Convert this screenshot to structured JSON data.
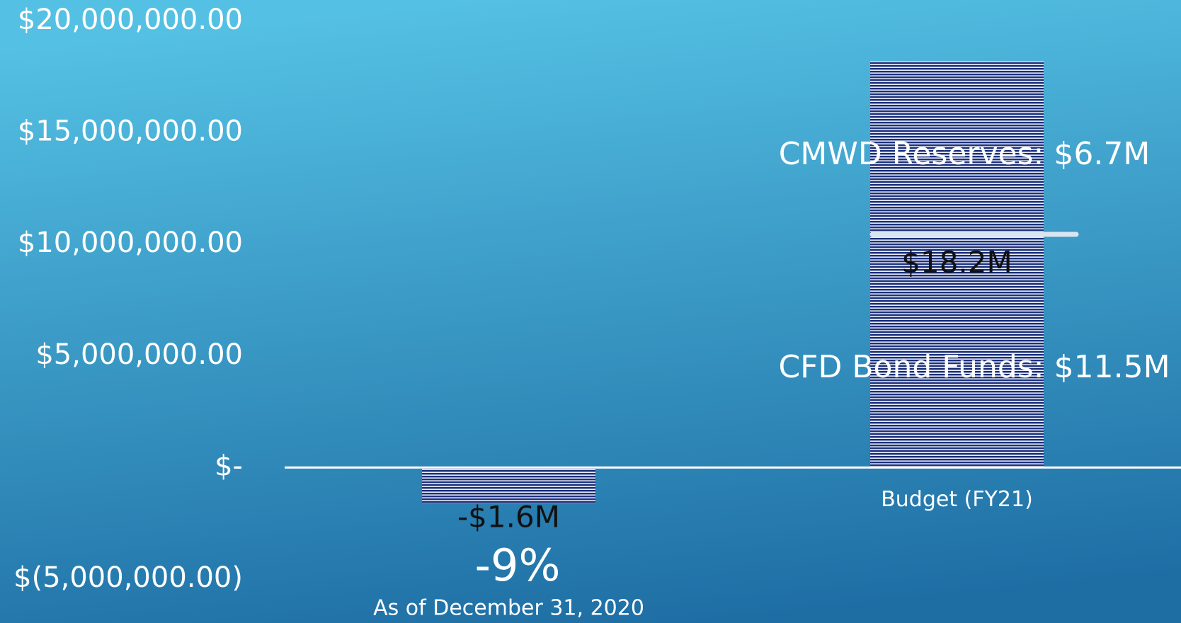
{
  "chart_data": {
    "type": "bar",
    "categories": [
      "As of December 31, 2020",
      "Budget (FY21)"
    ],
    "values": [
      -1600000,
      18200000
    ],
    "value_labels": [
      "-$1.6M",
      "$18.2M"
    ],
    "color": "#1c2f7a",
    "ylim": [
      -5000000,
      20000000
    ],
    "yticks": [
      {
        "value": -5000000,
        "label": "$(5,000,000.00)"
      },
      {
        "value": 0,
        "label": "$-"
      },
      {
        "value": 5000000,
        "label": "$5,000,000.00"
      },
      {
        "value": 10000000,
        "label": "$10,000,000.00"
      },
      {
        "value": 15000000,
        "label": "$15,000,000.00"
      },
      {
        "value": 20000000,
        "label": "$20,000,000.00"
      }
    ],
    "annotations": [
      "CMWD Reserves: $6.7M",
      "CFD Bond Funds: $11.5M",
      "-9%"
    ]
  }
}
